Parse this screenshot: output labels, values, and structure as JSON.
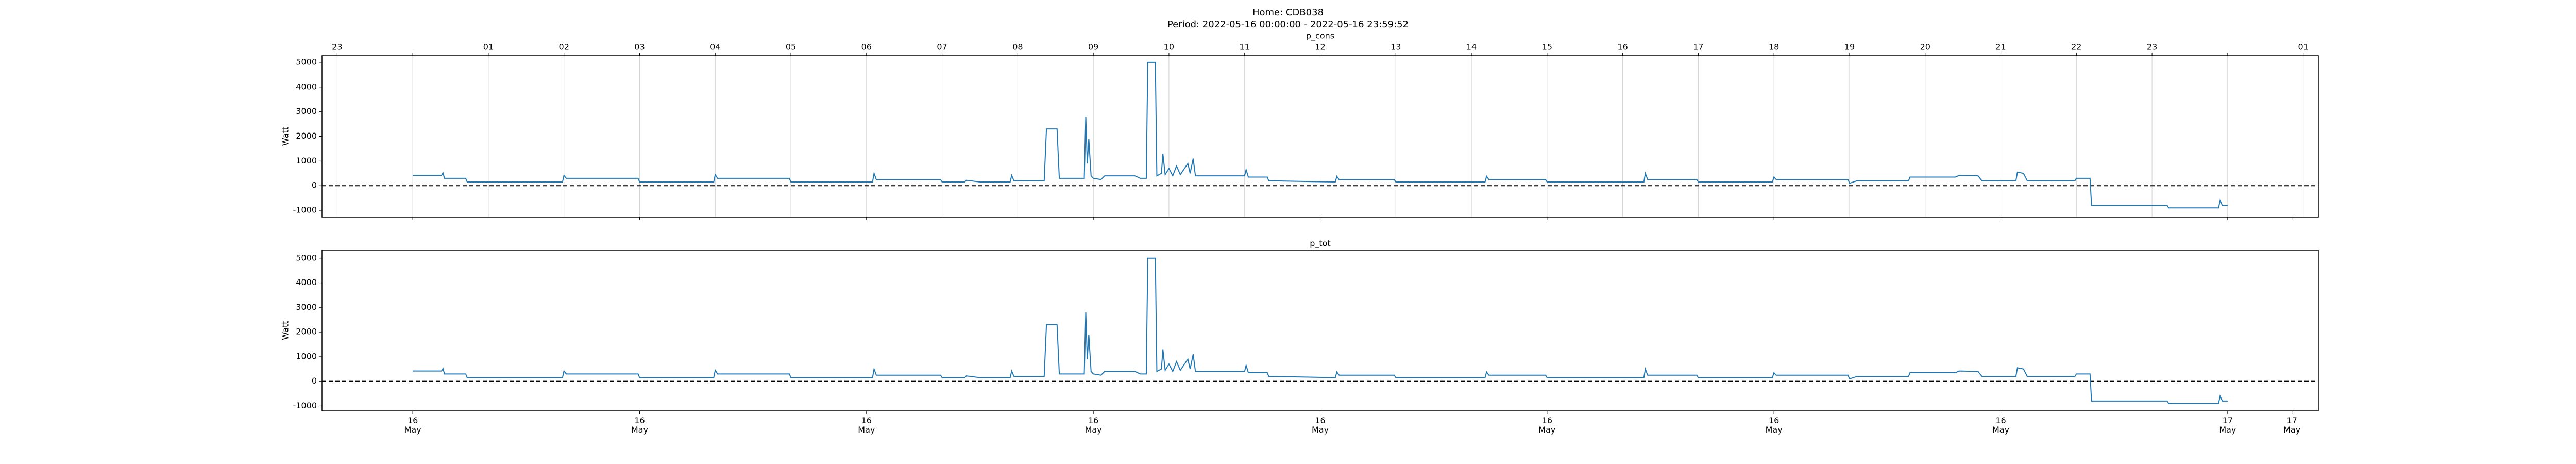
{
  "header": {
    "title": "Home: CDB038",
    "subtitle": "Period: 2022-05-16 00:00:00 - 2022-05-16 23:59:52"
  },
  "chart_data": [
    {
      "type": "line",
      "title": "p_cons",
      "ylabel": "Watt",
      "xtick_position": "top",
      "grid": true,
      "hline": 0,
      "xlim": [
        -1.2,
        25.2
      ],
      "ylim": [
        -1270,
        5270
      ],
      "yticks": [
        -1000,
        0,
        1000,
        2000,
        3000,
        4000,
        5000
      ],
      "xticks": [
        {
          "value": -1,
          "label": "23"
        },
        {
          "value": 0,
          "label": null
        },
        {
          "value": 1,
          "label": "01"
        },
        {
          "value": 2,
          "label": "02"
        },
        {
          "value": 3,
          "label": "03"
        },
        {
          "value": 4,
          "label": "04"
        },
        {
          "value": 5,
          "label": "05"
        },
        {
          "value": 6,
          "label": "06"
        },
        {
          "value": 7,
          "label": "07"
        },
        {
          "value": 8,
          "label": "08"
        },
        {
          "value": 9,
          "label": "09"
        },
        {
          "value": 10,
          "label": "10"
        },
        {
          "value": 11,
          "label": "11"
        },
        {
          "value": 12,
          "label": "12"
        },
        {
          "value": 13,
          "label": "13"
        },
        {
          "value": 14,
          "label": "14"
        },
        {
          "value": 15,
          "label": "15"
        },
        {
          "value": 16,
          "label": "16"
        },
        {
          "value": 17,
          "label": "17"
        },
        {
          "value": 18,
          "label": "18"
        },
        {
          "value": 19,
          "label": "19"
        },
        {
          "value": 20,
          "label": "20"
        },
        {
          "value": 21,
          "label": "21"
        },
        {
          "value": 22,
          "label": "22"
        },
        {
          "value": 23,
          "label": "23"
        },
        {
          "value": 24,
          "label": null
        },
        {
          "value": 25,
          "label": "01"
        }
      ],
      "color": "#1f77b4",
      "x": [
        0,
        0.38,
        0.4,
        0.42,
        0.7,
        0.72,
        1.98,
        2.0,
        2.03,
        2.98,
        3.0,
        3.98,
        4.0,
        4.03,
        4.98,
        5.0,
        6.08,
        6.1,
        6.13,
        6.98,
        7.0,
        7.3,
        7.32,
        7.5,
        7.9,
        7.92,
        7.95,
        8.35,
        8.38,
        8.52,
        8.55,
        8.88,
        8.9,
        8.92,
        8.94,
        8.97,
        9.0,
        9.1,
        9.15,
        9.55,
        9.62,
        9.7,
        9.72,
        9.82,
        9.84,
        9.9,
        9.92,
        9.95,
        10.0,
        10.05,
        10.1,
        10.15,
        10.25,
        10.28,
        10.32,
        10.35,
        11.0,
        11.02,
        11.05,
        11.3,
        11.32,
        12.2,
        12.22,
        12.25,
        12.98,
        13.0,
        14.18,
        14.2,
        14.23,
        14.98,
        15.0,
        16.28,
        16.3,
        16.33,
        16.98,
        17.0,
        17.98,
        18.0,
        18.03,
        18.98,
        19.0,
        19.1,
        19.78,
        19.8,
        20.4,
        20.45,
        20.7,
        20.75,
        21.2,
        21.22,
        21.3,
        21.35,
        21.98,
        22.0,
        22.18,
        22.2,
        23.2,
        23.22,
        23.88,
        23.9,
        23.93,
        24.0
      ],
      "values": [
        420,
        420,
        520,
        300,
        300,
        150,
        150,
        420,
        300,
        300,
        150,
        150,
        450,
        300,
        300,
        150,
        150,
        500,
        250,
        250,
        150,
        150,
        220,
        150,
        150,
        420,
        200,
        200,
        2300,
        2300,
        300,
        300,
        2800,
        900,
        1900,
        400,
        300,
        250,
        400,
        400,
        300,
        300,
        5000,
        5000,
        400,
        500,
        1300,
        450,
        700,
        400,
        800,
        450,
        900,
        500,
        1100,
        400,
        400,
        650,
        350,
        350,
        200,
        150,
        380,
        250,
        250,
        150,
        150,
        380,
        250,
        250,
        150,
        150,
        500,
        250,
        250,
        150,
        150,
        350,
        250,
        250,
        100,
        200,
        200,
        350,
        350,
        420,
        400,
        200,
        200,
        550,
        500,
        200,
        200,
        300,
        300,
        -800,
        -800,
        -900,
        -900,
        -600,
        -800,
        -800
      ]
    },
    {
      "type": "line",
      "title": "p_tot",
      "ylabel": "Watt",
      "xtick_position": "bottom",
      "grid": false,
      "hline": 0,
      "xlim": [
        -1.2,
        25.2
      ],
      "ylim": [
        -1200,
        5330
      ],
      "yticks": [
        -1000,
        0,
        1000,
        2000,
        3000,
        4000,
        5000
      ],
      "xticks": [
        {
          "value": 0,
          "label": "16\nMay"
        },
        {
          "value": 3,
          "label": "16\nMay"
        },
        {
          "value": 6,
          "label": "16\nMay"
        },
        {
          "value": 9,
          "label": "16\nMay"
        },
        {
          "value": 12,
          "label": "16\nMay"
        },
        {
          "value": 15,
          "label": "16\nMay"
        },
        {
          "value": 18,
          "label": "16\nMay"
        },
        {
          "value": 21,
          "label": "16\nMay"
        },
        {
          "value": 24,
          "label": "17\nMay"
        },
        {
          "value": 24.85,
          "label": "17\nMay"
        }
      ],
      "color": "#1f77b4",
      "x": [
        0,
        0.38,
        0.4,
        0.42,
        0.7,
        0.72,
        1.98,
        2.0,
        2.03,
        2.98,
        3.0,
        3.98,
        4.0,
        4.03,
        4.98,
        5.0,
        6.08,
        6.1,
        6.13,
        6.98,
        7.0,
        7.3,
        7.32,
        7.5,
        7.9,
        7.92,
        7.95,
        8.35,
        8.38,
        8.52,
        8.55,
        8.88,
        8.9,
        8.92,
        8.94,
        8.97,
        9.0,
        9.1,
        9.15,
        9.55,
        9.62,
        9.7,
        9.72,
        9.82,
        9.84,
        9.9,
        9.92,
        9.95,
        10.0,
        10.05,
        10.1,
        10.15,
        10.25,
        10.28,
        10.32,
        10.35,
        11.0,
        11.02,
        11.05,
        11.3,
        11.32,
        12.2,
        12.22,
        12.25,
        12.98,
        13.0,
        14.18,
        14.2,
        14.23,
        14.98,
        15.0,
        16.28,
        16.3,
        16.33,
        16.98,
        17.0,
        17.98,
        18.0,
        18.03,
        18.98,
        19.0,
        19.1,
        19.78,
        19.8,
        20.4,
        20.45,
        20.7,
        20.75,
        21.2,
        21.22,
        21.3,
        21.35,
        21.98,
        22.0,
        22.18,
        22.2,
        23.2,
        23.22,
        23.88,
        23.9,
        23.93,
        24.0
      ],
      "values": [
        420,
        420,
        520,
        300,
        300,
        150,
        150,
        420,
        300,
        300,
        150,
        150,
        450,
        300,
        300,
        150,
        150,
        500,
        250,
        250,
        150,
        150,
        220,
        150,
        150,
        420,
        200,
        200,
        2300,
        2300,
        300,
        300,
        2800,
        900,
        1900,
        400,
        300,
        250,
        400,
        400,
        300,
        300,
        5000,
        5000,
        400,
        500,
        1300,
        450,
        700,
        400,
        800,
        450,
        900,
        500,
        1100,
        400,
        400,
        650,
        350,
        350,
        200,
        150,
        380,
        250,
        250,
        150,
        150,
        380,
        250,
        250,
        150,
        150,
        500,
        250,
        250,
        150,
        150,
        350,
        250,
        250,
        100,
        200,
        200,
        350,
        350,
        420,
        400,
        200,
        200,
        550,
        500,
        200,
        200,
        300,
        300,
        -800,
        -800,
        -900,
        -900,
        -600,
        -800,
        -800
      ]
    }
  ]
}
